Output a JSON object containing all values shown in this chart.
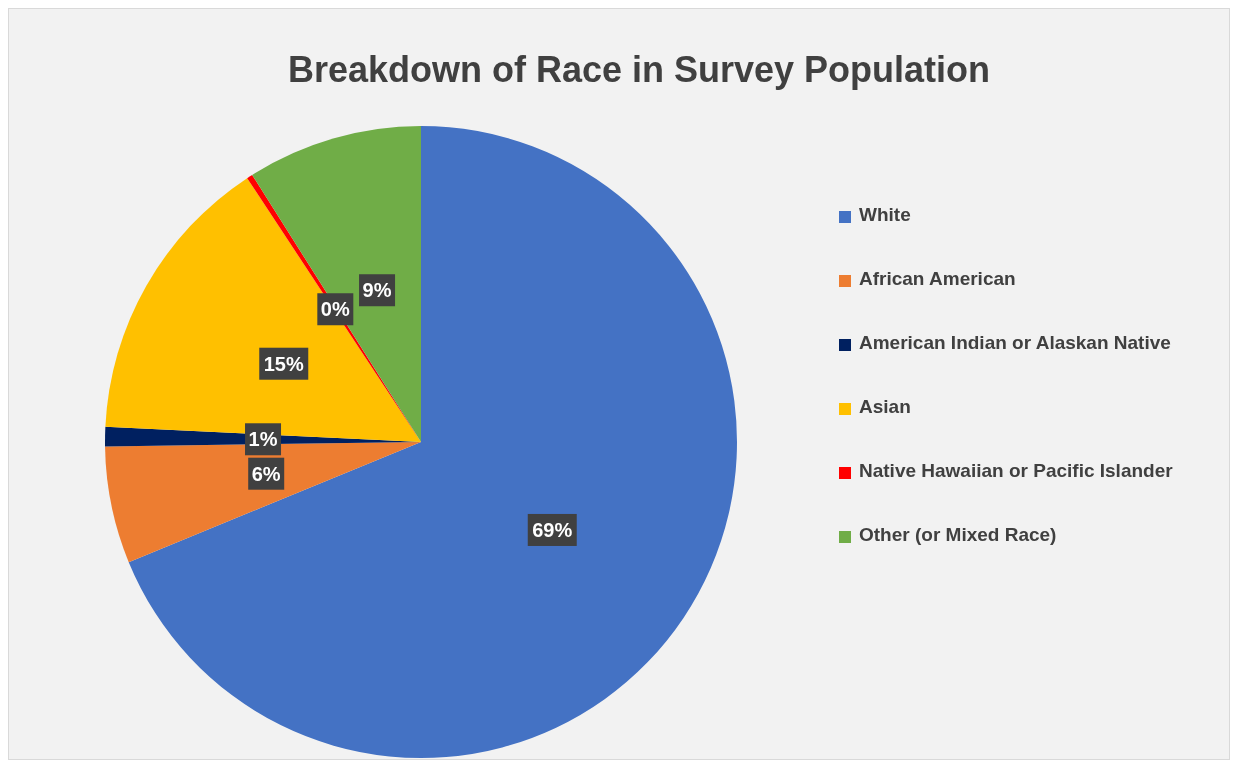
{
  "chart_data": {
    "type": "pie",
    "title": "Breakdown of Race in Survey Population",
    "categories": [
      "White",
      "African American",
      "American Indian or Alaskan Native",
      "Asian",
      "Native Hawaiian or Pacific Islander",
      "Other (or Mixed Race)"
    ],
    "values": [
      69,
      6,
      1,
      15,
      0.3,
      9
    ],
    "value_labels": [
      "69%",
      "6%",
      "1%",
      "15%",
      "0%",
      "9%"
    ],
    "colors": [
      "#4472c4",
      "#ed7d31",
      "#002060",
      "#ffc000",
      "#ff0000",
      "#70ad47"
    ],
    "legend": "right"
  }
}
